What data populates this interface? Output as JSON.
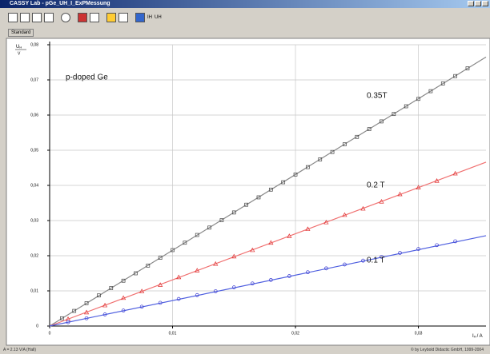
{
  "window": {
    "title": "CASSY Lab - pGe_UH_I_ExPMessung",
    "tab": "Standard",
    "toolbar_labels": [
      "IH",
      "UH"
    ]
  },
  "status": {
    "left": "A = 2.13 V/A  (Hall)",
    "right": "© by Leybold Didactic GmbH, 1999-2004"
  },
  "chart_data": {
    "type": "scatter",
    "ylabel": {
      "symbol": "U",
      "sub": "H",
      "unit": "V"
    },
    "xlabel": {
      "symbol": "I",
      "sub": "H",
      "unit": "/ A"
    },
    "xlim": [
      0,
      0.0355
    ],
    "ylim": [
      0,
      0.08
    ],
    "xticks": [
      {
        "value": 0,
        "label": "0"
      },
      {
        "value": 0.01,
        "label": "0,01"
      },
      {
        "value": 0.02,
        "label": "0,02"
      },
      {
        "value": 0.03,
        "label": "0,03"
      }
    ],
    "yticks": [
      {
        "value": 0,
        "label": "0"
      },
      {
        "value": 0.01,
        "label": "0,01"
      },
      {
        "value": 0.02,
        "label": "0,02"
      },
      {
        "value": 0.03,
        "label": "0,03"
      },
      {
        "value": 0.04,
        "label": "0,04"
      },
      {
        "value": 0.05,
        "label": "0,05"
      },
      {
        "value": 0.06,
        "label": "0,06"
      },
      {
        "value": 0.07,
        "label": "0,07"
      },
      {
        "value": 0.08,
        "label": "0,08"
      }
    ],
    "grid": true,
    "annotations": [
      "p-doped Ge",
      "0.35T",
      "0.2 T",
      "0.1 T"
    ],
    "series": [
      {
        "marker": "square",
        "color": "#444444",
        "x": [
          0.001,
          0.002,
          0.003,
          0.004,
          0.005,
          0.006,
          0.007,
          0.008,
          0.009,
          0.01,
          0.011,
          0.012,
          0.013,
          0.014,
          0.015,
          0.016,
          0.017,
          0.018,
          0.019,
          0.02,
          0.021,
          0.022,
          0.023,
          0.024,
          0.025,
          0.026,
          0.027,
          0.028,
          0.029,
          0.03,
          0.031,
          0.032,
          0.033,
          0.034
        ],
        "values": [
          0.0022,
          0.0043,
          0.0065,
          0.0087,
          0.0108,
          0.0129,
          0.015,
          0.0172,
          0.0194,
          0.0216,
          0.0237,
          0.0259,
          0.028,
          0.0301,
          0.0323,
          0.0345,
          0.0366,
          0.0388,
          0.0409,
          0.0431,
          0.0452,
          0.0474,
          0.0495,
          0.0517,
          0.0538,
          0.056,
          0.0582,
          0.0603,
          0.0625,
          0.0646,
          0.0668,
          0.069,
          0.0711,
          0.0733
        ]
      },
      {
        "marker": "triangle",
        "color": "#e03030",
        "x": [
          0.0015,
          0.003,
          0.0045,
          0.006,
          0.0075,
          0.009,
          0.0105,
          0.012,
          0.0135,
          0.015,
          0.0165,
          0.018,
          0.0195,
          0.021,
          0.0225,
          0.024,
          0.0255,
          0.027,
          0.0285,
          0.03,
          0.0315,
          0.033
        ],
        "values": [
          0.002,
          0.0039,
          0.0059,
          0.008,
          0.0099,
          0.0117,
          0.0139,
          0.0158,
          0.0177,
          0.0198,
          0.0216,
          0.0237,
          0.0256,
          0.0276,
          0.0295,
          0.0316,
          0.0334,
          0.0354,
          0.0375,
          0.0394,
          0.0413,
          0.0434
        ]
      },
      {
        "marker": "circle",
        "color": "#3a3ad0",
        "x": [
          0.0015,
          0.003,
          0.0045,
          0.006,
          0.0075,
          0.009,
          0.0105,
          0.012,
          0.0135,
          0.015,
          0.0165,
          0.018,
          0.0195,
          0.021,
          0.0225,
          0.024,
          0.0255,
          0.027,
          0.0285,
          0.03,
          0.0315,
          0.033
        ],
        "values": [
          0.0011,
          0.0022,
          0.0033,
          0.0044,
          0.0055,
          0.0066,
          0.0077,
          0.0088,
          0.0099,
          0.011,
          0.0121,
          0.0131,
          0.0142,
          0.0153,
          0.0164,
          0.0175,
          0.0186,
          0.0197,
          0.0208,
          0.0219,
          0.023,
          0.0241
        ]
      }
    ],
    "fits": [
      {
        "color": "#888888",
        "x": [
          0,
          0.0355
        ],
        "values": [
          0,
          0.0765
        ]
      },
      {
        "color": "#f07070",
        "x": [
          0,
          0.0355
        ],
        "values": [
          0,
          0.0466
        ]
      },
      {
        "color": "#5060e0",
        "x": [
          0,
          0.0355
        ],
        "values": [
          0,
          0.0257
        ]
      }
    ]
  }
}
